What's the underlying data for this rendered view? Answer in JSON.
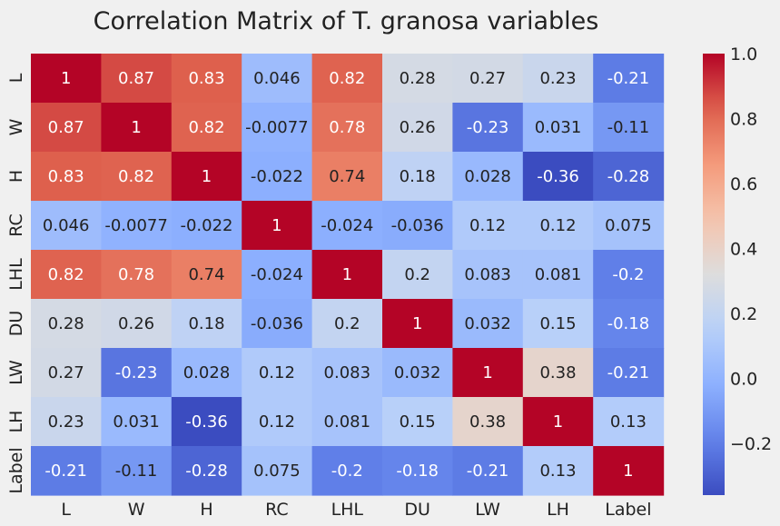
{
  "chart_data": {
    "type": "heatmap",
    "title": "Correlation Matrix of T. granosa variables",
    "x_labels": [
      "L",
      "W",
      "H",
      "RC",
      "LHL",
      "DU",
      "LW",
      "LH",
      "Label"
    ],
    "y_labels": [
      "L",
      "W",
      "H",
      "RC",
      "LHL",
      "DU",
      "LW",
      "LH",
      "Label"
    ],
    "cell_labels": [
      [
        "1",
        "0.87",
        "0.83",
        "0.046",
        "0.82",
        "0.28",
        "0.27",
        "0.23",
        "-0.21"
      ],
      [
        "0.87",
        "1",
        "0.82",
        "-0.0077",
        "0.78",
        "0.26",
        "-0.23",
        "0.031",
        "-0.11"
      ],
      [
        "0.83",
        "0.82",
        "1",
        "-0.022",
        "0.74",
        "0.18",
        "0.028",
        "-0.36",
        "-0.28"
      ],
      [
        "0.046",
        "-0.0077",
        "-0.022",
        "1",
        "-0.024",
        "-0.036",
        "0.12",
        "0.12",
        "0.075"
      ],
      [
        "0.82",
        "0.78",
        "0.74",
        "-0.024",
        "1",
        "0.2",
        "0.083",
        "0.081",
        "-0.2"
      ],
      [
        "0.28",
        "0.26",
        "0.18",
        "-0.036",
        "0.2",
        "1",
        "0.032",
        "0.15",
        "-0.18"
      ],
      [
        "0.27",
        "-0.23",
        "0.028",
        "0.12",
        "0.083",
        "0.032",
        "1",
        "0.38",
        "-0.21"
      ],
      [
        "0.23",
        "0.031",
        "-0.36",
        "0.12",
        "0.081",
        "0.15",
        "0.38",
        "1",
        "0.13"
      ],
      [
        "-0.21",
        "-0.11",
        "-0.28",
        "0.075",
        "-0.2",
        "-0.18",
        "-0.21",
        "0.13",
        "1"
      ]
    ],
    "colormap": "coolwarm",
    "vmin": -0.36,
    "vmax": 1.0,
    "colorbar_ticks": [
      "1.0",
      "0.8",
      "0.6",
      "0.4",
      "0.2",
      "0.0",
      "−0.2"
    ],
    "colorbar_tick_values": [
      1.0,
      0.8,
      0.6,
      0.4,
      0.2,
      0.0,
      -0.2
    ],
    "grid": false
  },
  "colors": {
    "background": "#f0f0f0",
    "text": "#222222"
  }
}
